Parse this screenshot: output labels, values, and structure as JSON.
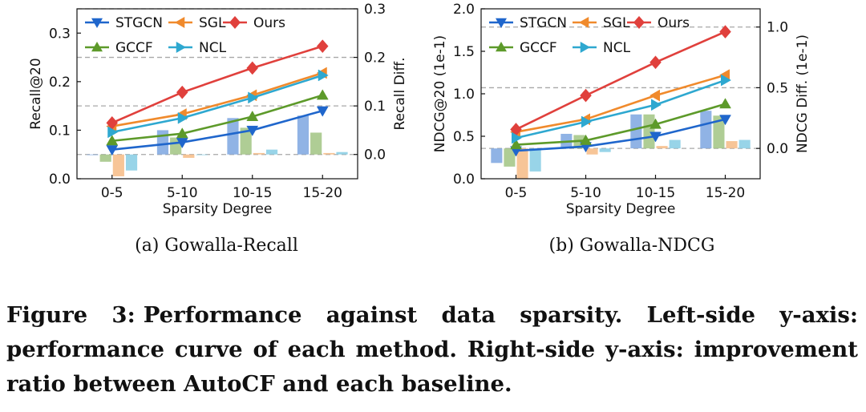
{
  "figure": {
    "caption_label": "Figure 3:",
    "caption_text": "Performance against data sparsity. Left-side y-axis: performance curve of each method. Right-side y-axis: improvement ratio between AutoCF and each baseline.",
    "subcaptions": [
      "(a)  Gowalla-Recall",
      "(b)  Gowalla-NDCG"
    ]
  },
  "colors": {
    "STGCN": "#1f66cc",
    "SGL": "#f08a2c",
    "Ours": "#e0403c",
    "GCCF": "#5d9a2a",
    "NCL": "#2ea8d0"
  },
  "markers": {
    "STGCN": "triangle-down",
    "SGL": "triangle-left",
    "Ours": "diamond",
    "GCCF": "triangle-up",
    "NCL": "triangle-right"
  },
  "chart_data": [
    {
      "type": "bar",
      "subtitle": "(a)  Gowalla-Recall",
      "categories": [
        "0-5",
        "5-10",
        "10-15",
        "15-20"
      ],
      "xlabel": "Sparsity Degree",
      "ylabel": "Recall@20",
      "ylim": [
        0,
        0.35
      ],
      "yticks": [
        0.0,
        0.1,
        0.2,
        0.3
      ],
      "ytick_labels": [
        "0.0",
        "0.1",
        "0.2",
        "0.3"
      ],
      "y2label": "Recall Diff.",
      "y2lim": [
        -0.05,
        0.3
      ],
      "y2ticks": [
        0.0,
        0.1,
        0.2,
        0.3
      ],
      "y2tick_labels": [
        "0.0",
        "0.1",
        "0.2",
        "0.3"
      ],
      "grid": "dashed at right-axis ticks",
      "legend": "top-left",
      "legend_order": [
        "STGCN",
        "SGL",
        "Ours",
        "GCCF",
        "NCL"
      ],
      "lines": [
        {
          "name": "STGCN",
          "values": [
            0.06,
            0.075,
            0.1,
            0.14
          ]
        },
        {
          "name": "SGL",
          "values": [
            0.108,
            0.133,
            0.172,
            0.218
          ]
        },
        {
          "name": "Ours",
          "values": [
            0.115,
            0.178,
            0.228,
            0.273
          ]
        },
        {
          "name": "GCCF",
          "values": [
            0.078,
            0.093,
            0.128,
            0.172
          ]
        },
        {
          "name": "NCL",
          "values": [
            0.096,
            0.125,
            0.167,
            0.213
          ]
        }
      ],
      "bars": [
        {
          "name": "STGCN",
          "values": [
            0.0,
            0.05,
            0.075,
            0.08
          ]
        },
        {
          "name": "GCCF",
          "values": [
            -0.015,
            0.035,
            0.055,
            0.045
          ]
        },
        {
          "name": "SGL",
          "values": [
            -0.045,
            -0.007,
            0.003,
            0.003
          ]
        },
        {
          "name": "NCL",
          "values": [
            -0.033,
            0.0,
            0.01,
            0.005
          ]
        }
      ]
    },
    {
      "type": "bar",
      "subtitle": "(b)  Gowalla-NDCG",
      "categories": [
        "0-5",
        "5-10",
        "10-15",
        "15-20"
      ],
      "xlabel": "Sparsity Degree",
      "ylabel": "NDCG@20 (1e-1)",
      "ylim": [
        0,
        2.0
      ],
      "yticks": [
        0.0,
        0.5,
        1.0,
        1.5,
        2.0
      ],
      "ytick_labels": [
        "0.0",
        "0.5",
        "1.0",
        "1.5",
        "2.0"
      ],
      "y2label": "NDCG Diff. (1e-1)",
      "y2lim": [
        -0.25,
        1.15
      ],
      "y2ticks": [
        0.0,
        0.5,
        1.0
      ],
      "y2tick_labels": [
        "0.0",
        "0.5",
        "1.0"
      ],
      "grid": "dashed at right-axis ticks",
      "legend": "top-left",
      "legend_order": [
        "STGCN",
        "SGL",
        "Ours",
        "GCCF",
        "NCL"
      ],
      "lines": [
        {
          "name": "STGCN",
          "values": [
            0.33,
            0.38,
            0.5,
            0.7
          ]
        },
        {
          "name": "SGL",
          "values": [
            0.55,
            0.7,
            0.98,
            1.22
          ]
        },
        {
          "name": "Ours",
          "values": [
            0.58,
            0.98,
            1.37,
            1.73
          ]
        },
        {
          "name": "GCCF",
          "values": [
            0.4,
            0.45,
            0.64,
            0.88
          ]
        },
        {
          "name": "NCL",
          "values": [
            0.48,
            0.67,
            0.87,
            1.16
          ]
        }
      ],
      "bars": [
        {
          "name": "STGCN",
          "values": [
            -0.12,
            0.12,
            0.28,
            0.31
          ]
        },
        {
          "name": "GCCF",
          "values": [
            -0.15,
            0.11,
            0.28,
            0.27
          ]
        },
        {
          "name": "SGL",
          "values": [
            -0.25,
            -0.05,
            0.02,
            0.06
          ]
        },
        {
          "name": "NCL",
          "values": [
            -0.19,
            -0.03,
            0.07,
            0.07
          ]
        }
      ]
    }
  ]
}
